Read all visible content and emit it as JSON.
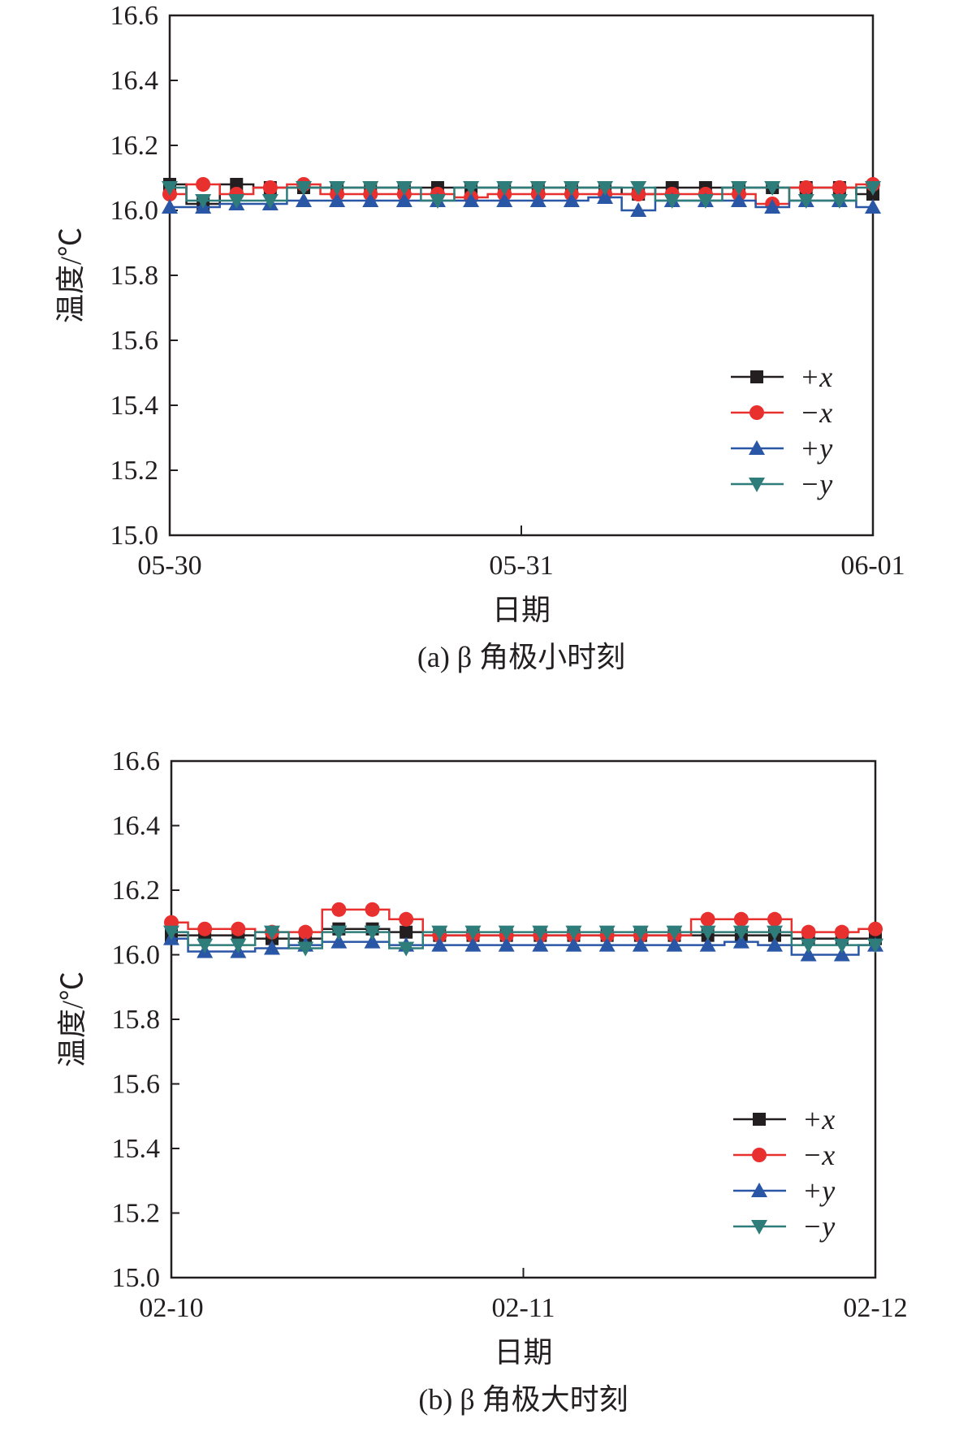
{
  "colors": {
    "+x": "#231f20",
    "-x": "#e8312f",
    "+y": "#2a56a6",
    "-y": "#2e7d7a"
  },
  "chart_data": [
    {
      "type": "line",
      "title": "(a) β 角极小时刻",
      "xlabel": "日期",
      "ylabel": "温度/℃",
      "ylim": [
        15.0,
        16.6
      ],
      "yticks": [
        "15.0",
        "15.2",
        "15.4",
        "15.6",
        "15.8",
        "16.0",
        "16.2",
        "16.4",
        "16.6"
      ],
      "xlim": [
        0,
        2
      ],
      "xticks": [
        "05-30",
        "05-31",
        "06-01"
      ],
      "legend": "bottom-right",
      "x": [
        0,
        0.095,
        0.19,
        0.286,
        0.381,
        0.476,
        0.571,
        0.667,
        0.762,
        0.857,
        0.952,
        1.048,
        1.143,
        1.238,
        1.333,
        1.429,
        1.524,
        1.619,
        1.714,
        1.81,
        1.905,
        2.0
      ],
      "series": [
        {
          "name": "+x",
          "marker": "square",
          "values": [
            16.08,
            16.02,
            16.08,
            16.07,
            16.07,
            16.07,
            16.07,
            16.07,
            16.07,
            16.07,
            16.07,
            16.07,
            16.07,
            16.07,
            16.05,
            16.07,
            16.07,
            16.07,
            16.07,
            16.07,
            16.07,
            16.05
          ]
        },
        {
          "name": "−x",
          "marker": "circle",
          "values": [
            16.05,
            16.08,
            16.05,
            16.07,
            16.08,
            16.05,
            16.05,
            16.05,
            16.05,
            16.04,
            16.05,
            16.05,
            16.05,
            16.05,
            16.05,
            16.05,
            16.05,
            16.05,
            16.02,
            16.07,
            16.07,
            16.08
          ]
        },
        {
          "name": "+y",
          "marker": "triangle-up",
          "values": [
            16.01,
            16.01,
            16.02,
            16.02,
            16.03,
            16.03,
            16.03,
            16.03,
            16.03,
            16.03,
            16.03,
            16.03,
            16.03,
            16.04,
            16.0,
            16.03,
            16.03,
            16.03,
            16.01,
            16.03,
            16.03,
            16.01
          ]
        },
        {
          "name": "−y",
          "marker": "triangle-down",
          "values": [
            16.07,
            16.03,
            16.03,
            16.03,
            16.07,
            16.07,
            16.07,
            16.07,
            16.03,
            16.07,
            16.07,
            16.07,
            16.07,
            16.07,
            16.07,
            16.03,
            16.03,
            16.07,
            16.07,
            16.03,
            16.03,
            16.07
          ]
        }
      ]
    },
    {
      "type": "line",
      "title": "(b) β 角极大时刻",
      "xlabel": "日期",
      "ylabel": "温度/℃",
      "ylim": [
        15.0,
        16.6
      ],
      "yticks": [
        "15.0",
        "15.2",
        "15.4",
        "15.6",
        "15.8",
        "16.0",
        "16.2",
        "16.4",
        "16.6"
      ],
      "xlim": [
        0,
        2
      ],
      "xticks": [
        "02-10",
        "02-11",
        "02-12"
      ],
      "legend": "bottom-right",
      "x": [
        0,
        0.095,
        0.19,
        0.286,
        0.381,
        0.476,
        0.571,
        0.667,
        0.762,
        0.857,
        0.952,
        1.048,
        1.143,
        1.238,
        1.333,
        1.429,
        1.524,
        1.619,
        1.714,
        1.81,
        1.905,
        2.0
      ],
      "series": [
        {
          "name": "+x",
          "marker": "square",
          "values": [
            16.06,
            16.06,
            16.06,
            16.05,
            16.05,
            16.08,
            16.08,
            16.07,
            16.06,
            16.06,
            16.06,
            16.06,
            16.06,
            16.06,
            16.06,
            16.06,
            16.06,
            16.06,
            16.06,
            16.05,
            16.05,
            16.05
          ]
        },
        {
          "name": "−x",
          "marker": "circle",
          "values": [
            16.1,
            16.08,
            16.08,
            16.07,
            16.07,
            16.14,
            16.14,
            16.11,
            16.06,
            16.06,
            16.06,
            16.06,
            16.06,
            16.06,
            16.06,
            16.06,
            16.11,
            16.11,
            16.11,
            16.07,
            16.07,
            16.08
          ]
        },
        {
          "name": "+y",
          "marker": "triangle-up",
          "values": [
            16.05,
            16.01,
            16.01,
            16.02,
            16.03,
            16.04,
            16.04,
            16.03,
            16.03,
            16.03,
            16.03,
            16.03,
            16.03,
            16.03,
            16.03,
            16.03,
            16.03,
            16.04,
            16.03,
            16.0,
            16.0,
            16.03
          ]
        },
        {
          "name": "−y",
          "marker": "triangle-down",
          "values": [
            16.07,
            16.03,
            16.03,
            16.07,
            16.02,
            16.07,
            16.07,
            16.02,
            16.07,
            16.07,
            16.07,
            16.07,
            16.07,
            16.07,
            16.07,
            16.07,
            16.07,
            16.07,
            16.07,
            16.03,
            16.03,
            16.03
          ]
        }
      ]
    }
  ]
}
